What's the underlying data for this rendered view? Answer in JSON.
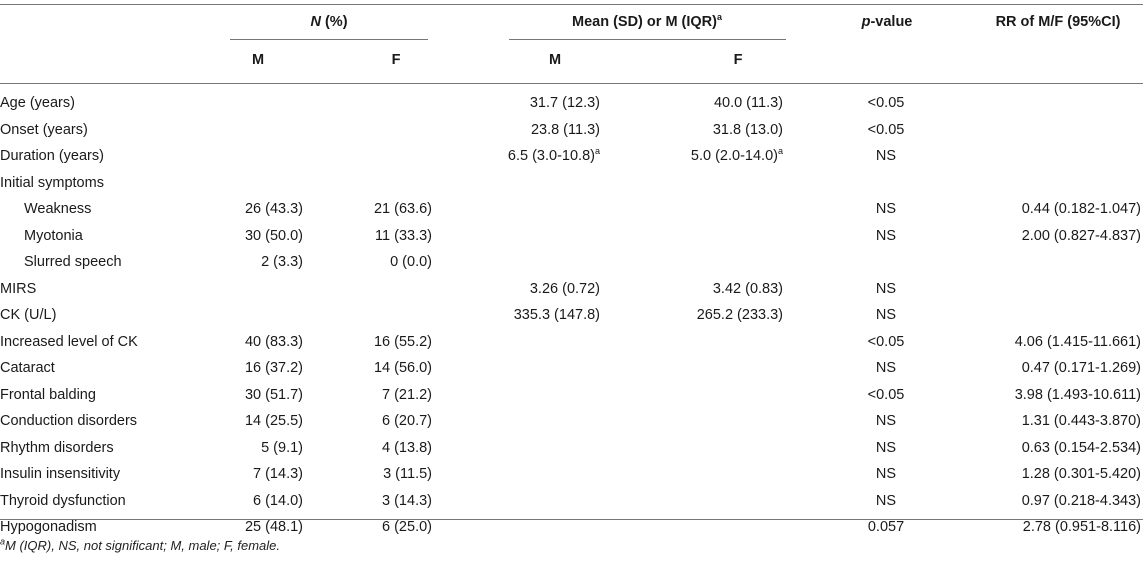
{
  "header": {
    "n_pct": {
      "n": "N",
      "rest": " (%)"
    },
    "mean_group": {
      "text": "Mean (SD) or M (IQR)",
      "sup": "a"
    },
    "p_value": {
      "p": "p",
      "rest": "-value"
    },
    "rr": "RR of M/F (95%CI)",
    "m": "M",
    "f": "F"
  },
  "rows": [
    {
      "label": "Age (years)",
      "nm": "",
      "nf": "",
      "mm": "31.7 (12.3)",
      "mf": "40.0 (11.3)",
      "p": "<0.05",
      "rr": ""
    },
    {
      "label": "Onset (years)",
      "nm": "",
      "nf": "",
      "mm": "23.8 (11.3)",
      "mf": "31.8 (13.0)",
      "p": "<0.05",
      "rr": ""
    },
    {
      "label": "Duration (years)",
      "nm": "",
      "nf": "",
      "mm": "6.5 (3.0-10.8)",
      "mm_sup": "a",
      "mf": "5.0 (2.0-14.0)",
      "mf_sup": "a",
      "p": "NS",
      "rr": ""
    },
    {
      "label": "Initial symptoms",
      "nm": "",
      "nf": "",
      "mm": "",
      "mf": "",
      "p": "",
      "rr": ""
    },
    {
      "label": "Weakness",
      "indent": true,
      "nm": "26 (43.3)",
      "nf": "21 (63.6)",
      "mm": "",
      "mf": "",
      "p": "NS",
      "rr": "0.44 (0.182-1.047)"
    },
    {
      "label": "Myotonia",
      "indent": true,
      "nm": "30 (50.0)",
      "nf": "11 (33.3)",
      "mm": "",
      "mf": "",
      "p": "NS",
      "rr": "2.00 (0.827-4.837)"
    },
    {
      "label": "Slurred speech",
      "indent": true,
      "nm": "2 (3.3)",
      "nf": "0 (0.0)",
      "mm": "",
      "mf": "",
      "p": "",
      "rr": ""
    },
    {
      "label": "MIRS",
      "nm": "",
      "nf": "",
      "mm": "3.26 (0.72)",
      "mf": "3.42 (0.83)",
      "p": "NS",
      "rr": ""
    },
    {
      "label": "CK (U/L)",
      "nm": "",
      "nf": "",
      "mm": "335.3 (147.8)",
      "mf": "265.2 (233.3)",
      "p": "NS",
      "rr": ""
    },
    {
      "label": "Increased level of CK",
      "nm": "40 (83.3)",
      "nf": "16 (55.2)",
      "mm": "",
      "mf": "",
      "p": "<0.05",
      "rr": "4.06 (1.415-11.661)"
    },
    {
      "label": "Cataract",
      "nm": "16 (37.2)",
      "nf": "14 (56.0)",
      "mm": "",
      "mf": "",
      "p": "NS",
      "rr": "0.47 (0.171-1.269)"
    },
    {
      "label": "Frontal balding",
      "nm": "30 (51.7)",
      "nf": "7 (21.2)",
      "mm": "",
      "mf": "",
      "p": "<0.05",
      "rr": "3.98 (1.493-10.611)"
    },
    {
      "label": "Conduction disorders",
      "nm": "14 (25.5)",
      "nf": "6 (20.7)",
      "mm": "",
      "mf": "",
      "p": "NS",
      "rr": "1.31 (0.443-3.870)"
    },
    {
      "label": "Rhythm disorders",
      "nm": "5 (9.1)",
      "nf": "4 (13.8)",
      "mm": "",
      "mf": "",
      "p": "NS",
      "rr": "0.63 (0.154-2.534)"
    },
    {
      "label": "Insulin insensitivity",
      "nm": "7 (14.3)",
      "nf": "3 (11.5)",
      "mm": "",
      "mf": "",
      "p": "NS",
      "rr": "1.28 (0.301-5.420)"
    },
    {
      "label": "Thyroid dysfunction",
      "nm": "6 (14.0)",
      "nf": "3 (14.3)",
      "mm": "",
      "mf": "",
      "p": "NS",
      "rr": "0.97 (0.218-4.343)"
    },
    {
      "label": "Hypogonadism",
      "nm": "25 (48.1)",
      "nf": "6 (25.0)",
      "mm": "",
      "mf": "",
      "p": "0.057",
      "rr": "2.78 (0.951-8.116)"
    }
  ],
  "footnote": {
    "sup": "a",
    "text": "M (IQR), NS, not significant; M, male; F, female."
  }
}
